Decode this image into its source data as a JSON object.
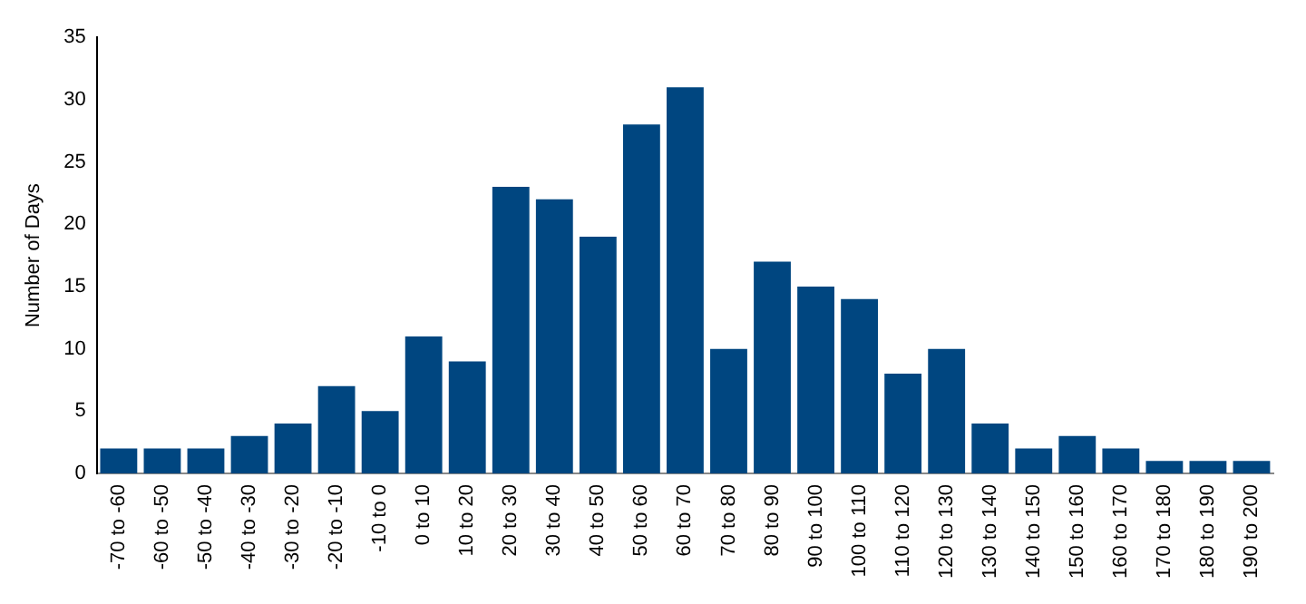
{
  "chart_data": {
    "type": "bar",
    "ylabel": "Number of Days",
    "categories": [
      "-70 to -60",
      "-60 to -50",
      "-50 to -40",
      "-40 to -30",
      "-30 to -20",
      "-20 to -10",
      "-10 to 0",
      "0 to 10",
      "10 to 20",
      "20 to 30",
      "30 to 40",
      "40 to 50",
      "50 to 60",
      "60 to 70",
      "70 to 80",
      "80 to 90",
      "90 to 100",
      "100 to 110",
      "110 to 120",
      "120 to 130",
      "130 to 140",
      "140 to 150",
      "150 to 160",
      "160 to 170",
      "170 to 180",
      "180 to 190",
      "190 to 200"
    ],
    "values": [
      2,
      2,
      2,
      3,
      4,
      7,
      5,
      11,
      9,
      23,
      22,
      19,
      28,
      31,
      10,
      17,
      15,
      14,
      8,
      10,
      4,
      2,
      3,
      2,
      1,
      1,
      1
    ],
    "color": "#004680",
    "ylim": [
      0,
      35
    ],
    "yticks": [
      0,
      5,
      10,
      15,
      20,
      25,
      30,
      35
    ],
    "grid": false,
    "legend": false
  }
}
